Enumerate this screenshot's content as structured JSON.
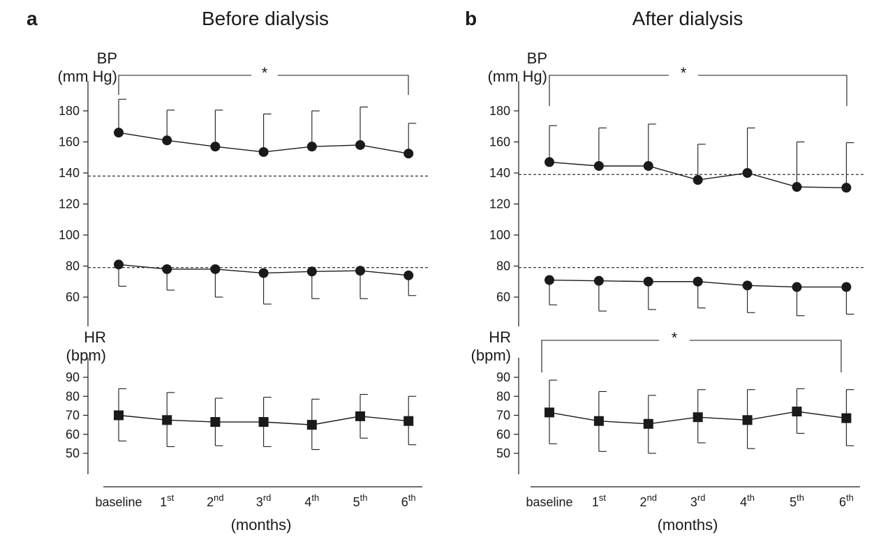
{
  "chart_data": [
    {
      "panel": "a",
      "title": "Before dialysis",
      "type": "line",
      "categories": [
        "baseline",
        "1st",
        "2nd",
        "3rd",
        "4th",
        "5th",
        "6th"
      ],
      "xlabel": "(months)",
      "subplots": [
        {
          "ylabel": [
            "BP",
            "(mm Hg)"
          ],
          "yticks": [
            60,
            80,
            100,
            120,
            140,
            160,
            180
          ],
          "ylim": [
            40,
            190
          ],
          "reference_lines": [
            138,
            79
          ],
          "significance": "*",
          "series": [
            {
              "values": [
                166,
                161,
                157,
                153.5,
                157,
                158,
                152.5
              ],
              "sd_upper": [
                187.5,
                180.5,
                180.5,
                178,
                180,
                182.5,
                172
              ],
              "marker": "circle"
            },
            {
              "values": [
                81,
                78,
                78,
                75.5,
                76.5,
                77,
                74
              ],
              "sd_lower": [
                67,
                64.5,
                60,
                55.5,
                59,
                59,
                61
              ],
              "marker": "circle"
            }
          ]
        },
        {
          "ylabel": [
            "HR",
            "(bpm)"
          ],
          "yticks": [
            50,
            60,
            70,
            80,
            90
          ],
          "ylim": [
            40,
            95
          ],
          "series": [
            {
              "values": [
                70,
                67.5,
                66.5,
                66.5,
                65,
                69.5,
                67
              ],
              "sd_upper": [
                84,
                82,
                79,
                79.5,
                78.5,
                81,
                80
              ],
              "sd_lower": [
                56.5,
                53.5,
                54,
                53.5,
                52,
                58,
                54.5
              ],
              "marker": "square"
            }
          ]
        }
      ]
    },
    {
      "panel": "b",
      "title": "After dialysis",
      "type": "line",
      "categories": [
        "baseline",
        "1st",
        "2nd",
        "3rd",
        "4th",
        "5th",
        "6th"
      ],
      "xlabel": "(months)",
      "subplots": [
        {
          "ylabel": [
            "BP",
            "(mm Hg)"
          ],
          "yticks": [
            60,
            80,
            100,
            120,
            140,
            160,
            180
          ],
          "ylim": [
            40,
            190
          ],
          "reference_lines": [
            139,
            79
          ],
          "significance": "*",
          "series": [
            {
              "values": [
                147,
                144.5,
                144.5,
                135.5,
                140,
                131,
                130.5
              ],
              "sd_upper": [
                170.5,
                169,
                171.5,
                158.5,
                169,
                160,
                159.5
              ],
              "marker": "circle"
            },
            {
              "values": [
                71,
                70.5,
                70,
                70,
                67.5,
                66.5,
                66.5
              ],
              "sd_lower": [
                55,
                51,
                52,
                53,
                50,
                48,
                49
              ],
              "marker": "circle"
            }
          ]
        },
        {
          "ylabel": [
            "HR",
            "(bpm)"
          ],
          "yticks": [
            50,
            60,
            70,
            80,
            90
          ],
          "ylim": [
            40,
            95
          ],
          "significance": "*",
          "series": [
            {
              "values": [
                71.5,
                67,
                65.5,
                69,
                67.5,
                72,
                68.5
              ],
              "sd_upper": [
                88.5,
                82.5,
                80.5,
                83.5,
                83.5,
                84,
                83.5
              ],
              "sd_lower": [
                55,
                51,
                50,
                55.5,
                52.5,
                60.5,
                54
              ],
              "marker": "square"
            }
          ]
        }
      ]
    }
  ]
}
